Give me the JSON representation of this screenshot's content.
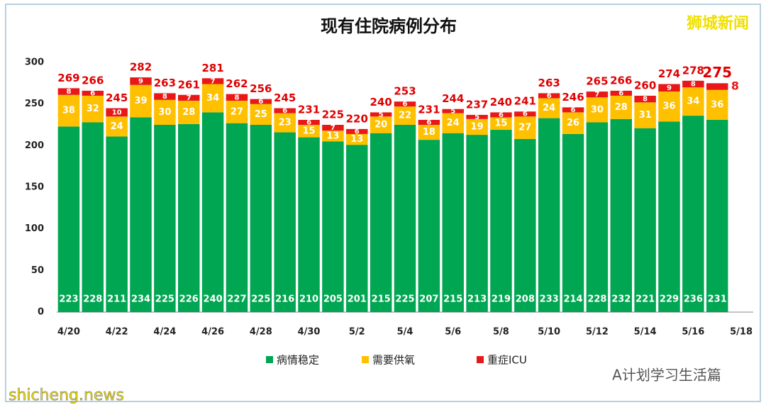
{
  "chart_data": {
    "type": "bar",
    "stacked": true,
    "title": "现有住院病例分布",
    "categories": [
      "4/20",
      null,
      "4/22",
      null,
      "4/24",
      null,
      "4/26",
      null,
      "4/28",
      null,
      "4/30",
      null,
      "5/2",
      null,
      "5/4",
      null,
      "5/6",
      null,
      "5/8",
      null,
      "5/10",
      null,
      "5/12",
      null,
      "5/14",
      null,
      "5/16",
      null,
      "5/18"
    ],
    "series": [
      {
        "name": "病情稳定",
        "color": "#00a651",
        "values": [
          223,
          228,
          211,
          234,
          225,
          226,
          240,
          227,
          225,
          216,
          210,
          205,
          201,
          215,
          225,
          207,
          215,
          213,
          219,
          208,
          233,
          214,
          228,
          232,
          221,
          229,
          236,
          231,
          null
        ]
      },
      {
        "name": "需要供氧",
        "color": "#ffc000",
        "values": [
          38,
          32,
          24,
          39,
          30,
          28,
          34,
          27,
          25,
          23,
          15,
          13,
          13,
          20,
          22,
          18,
          24,
          19,
          15,
          27,
          24,
          26,
          30,
          28,
          31,
          36,
          34,
          36,
          null
        ]
      },
      {
        "name": "重症ICU",
        "color": "#e81818",
        "values": [
          8,
          6,
          10,
          9,
          8,
          7,
          7,
          8,
          6,
          6,
          6,
          7,
          6,
          5,
          6,
          6,
          5,
          5,
          6,
          6,
          6,
          6,
          7,
          6,
          8,
          9,
          8,
          8,
          null
        ]
      }
    ],
    "totals": [
      269,
      266,
      245,
      282,
      263,
      261,
      281,
      262,
      256,
      245,
      231,
      225,
      220,
      240,
      253,
      231,
      244,
      237,
      240,
      241,
      263,
      246,
      265,
      266,
      260,
      274,
      278,
      275,
      null
    ],
    "ylim": [
      0,
      300
    ],
    "yticks": [
      0,
      50,
      100,
      150,
      200,
      250,
      300
    ],
    "grid": false,
    "legend": "bottom",
    "watermarks": [
      "狮城新闻",
      "A计划学习生活篇",
      "shicheng.news"
    ]
  }
}
